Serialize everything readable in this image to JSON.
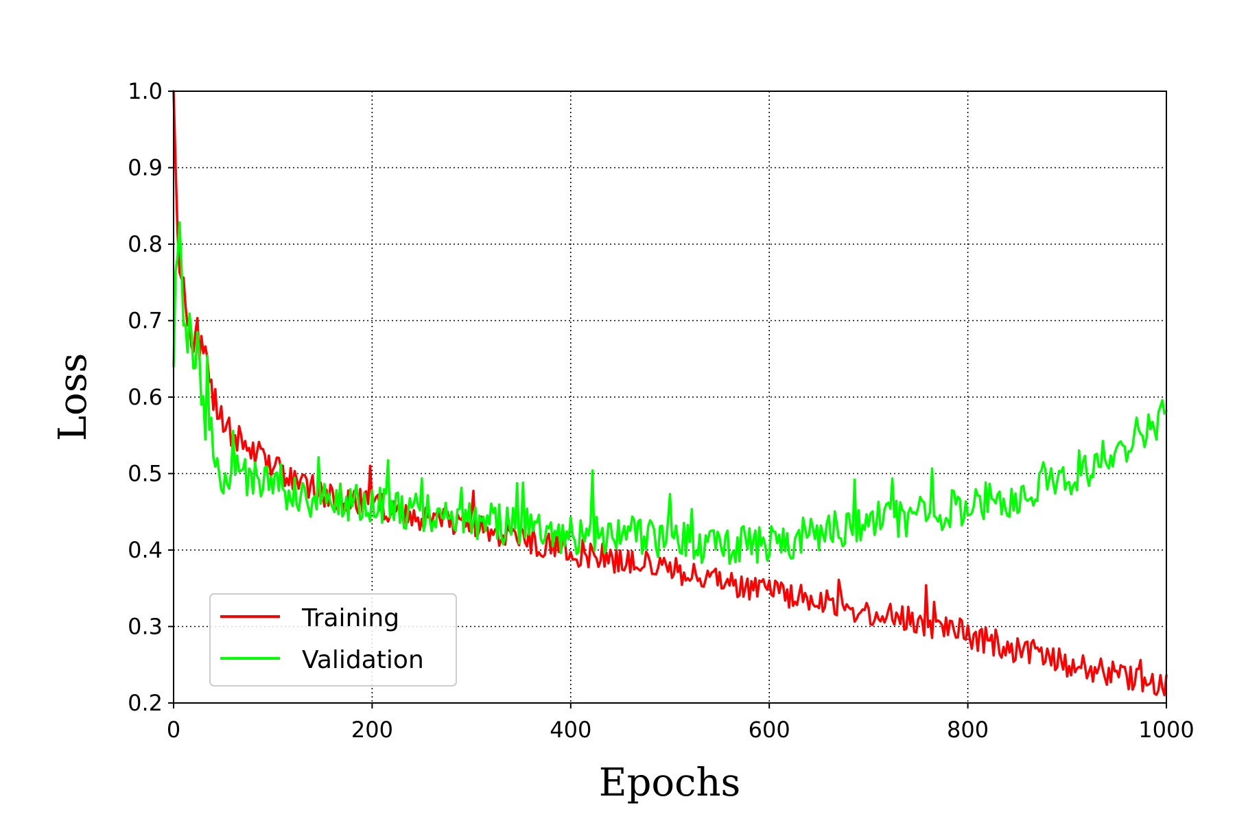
{
  "chart_data": {
    "type": "line",
    "title": "",
    "xlabel": "Epochs",
    "ylabel": "Loss",
    "xlim": [
      0,
      1000
    ],
    "ylim": [
      0.2,
      1.0
    ],
    "xticks": [
      0,
      200,
      400,
      600,
      800,
      1000
    ],
    "yticks": [
      0.2,
      0.3,
      0.4,
      0.5,
      0.6,
      0.7,
      0.8,
      0.9,
      1.0
    ],
    "xtick_labels": [
      "0",
      "200",
      "400",
      "600",
      "800",
      "1000"
    ],
    "ytick_labels": [
      "0.2",
      "0.3",
      "0.4",
      "0.5",
      "0.6",
      "0.7",
      "0.8",
      "0.9",
      "1.0"
    ],
    "grid": true,
    "legend_position": "lower-left",
    "x": [
      0,
      5,
      10,
      20,
      30,
      40,
      50,
      60,
      80,
      100,
      120,
      150,
      200,
      250,
      300,
      350,
      400,
      450,
      500,
      550,
      600,
      650,
      700,
      750,
      800,
      850,
      900,
      950,
      1000
    ],
    "series": [
      {
        "name": "Training",
        "color": "#ff0000",
        "values": [
          1.0,
          0.8,
          0.74,
          0.69,
          0.65,
          0.6,
          0.57,
          0.55,
          0.53,
          0.51,
          0.49,
          0.475,
          0.46,
          0.44,
          0.43,
          0.415,
          0.4,
          0.385,
          0.375,
          0.36,
          0.345,
          0.335,
          0.32,
          0.305,
          0.29,
          0.27,
          0.255,
          0.235,
          0.225
        ]
      },
      {
        "name": "Validation",
        "color": "#00ff00",
        "values": [
          0.64,
          0.84,
          0.72,
          0.68,
          0.62,
          0.5,
          0.49,
          0.5,
          0.495,
          0.485,
          0.475,
          0.465,
          0.46,
          0.45,
          0.44,
          0.43,
          0.42,
          0.42,
          0.415,
          0.405,
          0.41,
          0.42,
          0.44,
          0.445,
          0.46,
          0.47,
          0.49,
          0.53,
          0.58
        ]
      }
    ]
  }
}
